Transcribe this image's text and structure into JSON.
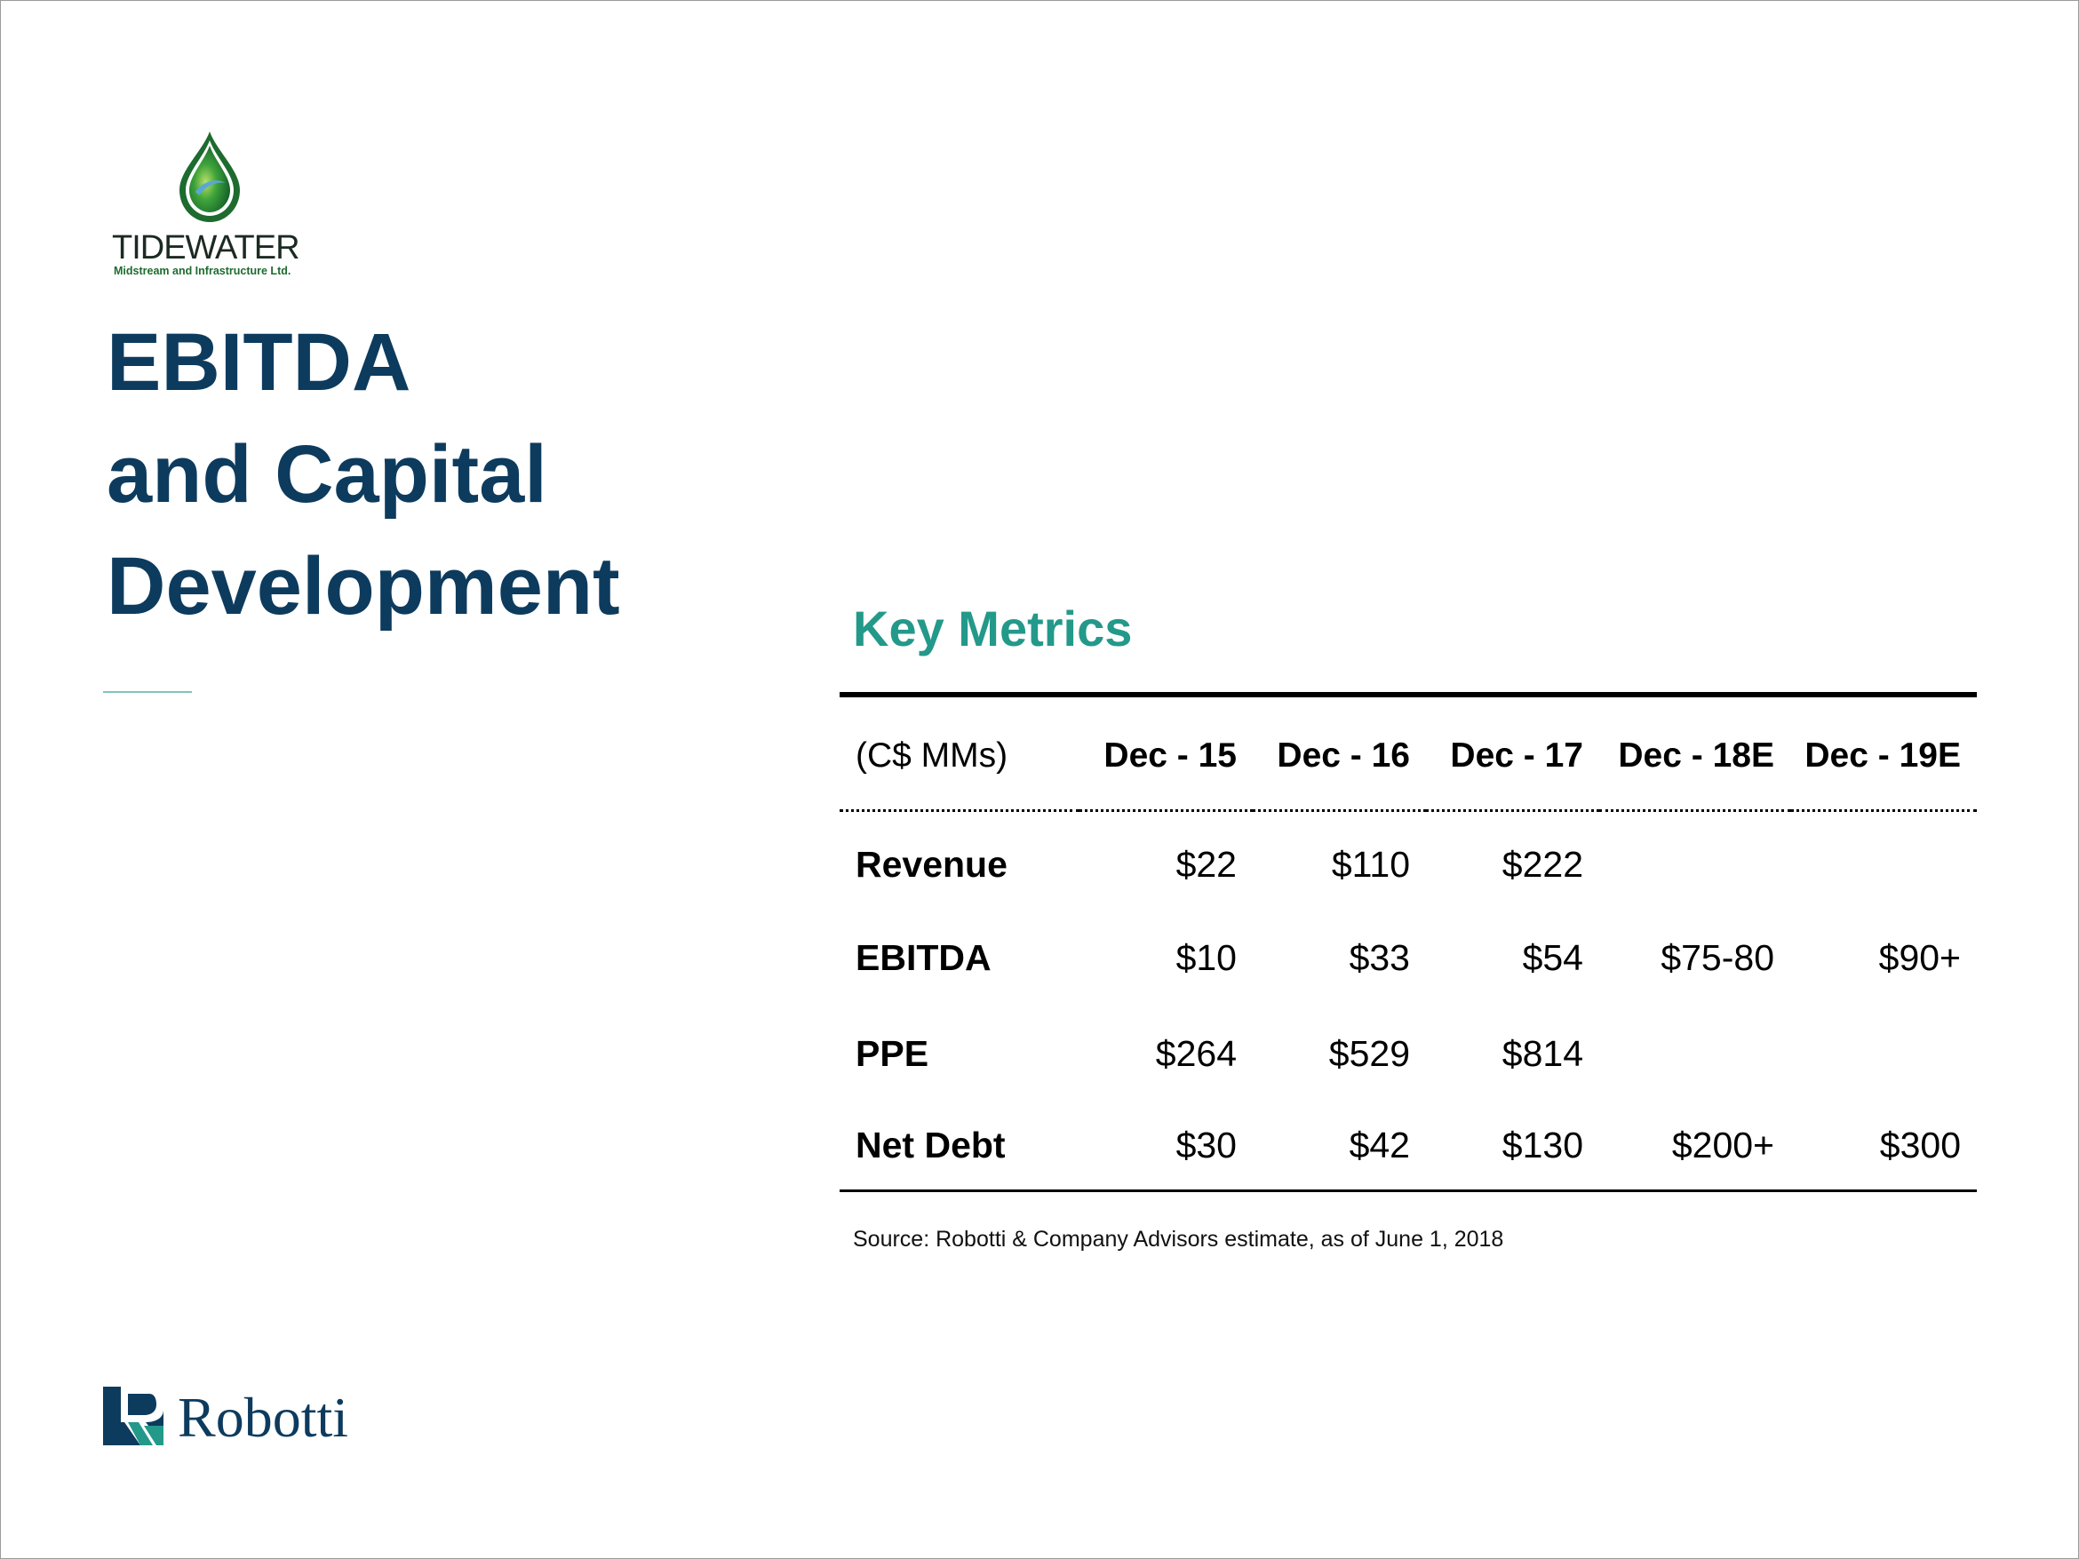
{
  "brand": {
    "company_name": "TIDEWATER",
    "company_subtitle": "Midstream and Infrastructure Ltd.",
    "advisor_name": "Robotti",
    "colors": {
      "title_navy": "#0d3b5e",
      "heading_teal": "#23998a",
      "logo_green": "#1d6b2e"
    }
  },
  "page": {
    "title_lines": [
      "EBITDA",
      "and Capital",
      "Development"
    ]
  },
  "key_metrics": {
    "heading": "Key Metrics",
    "unit_label": "(C$ MMs)",
    "columns": [
      "Dec - 15",
      "Dec - 16",
      "Dec - 17",
      "Dec - 18E",
      "Dec - 19E"
    ],
    "rows": [
      {
        "label": "Revenue",
        "values": [
          "$22",
          "$110",
          "$222",
          "",
          ""
        ]
      },
      {
        "label": "EBITDA",
        "values": [
          "$10",
          "$33",
          "$54",
          "$75-80",
          "$90+"
        ]
      },
      {
        "label": "PPE",
        "values": [
          "$264",
          "$529",
          "$814",
          "",
          ""
        ]
      },
      {
        "label": "Net Debt",
        "values": [
          "$30",
          "$42",
          "$130",
          "$200+",
          "$300"
        ]
      }
    ],
    "source": "Source: Robotti & Company Advisors estimate, as of June 1, 2018"
  }
}
